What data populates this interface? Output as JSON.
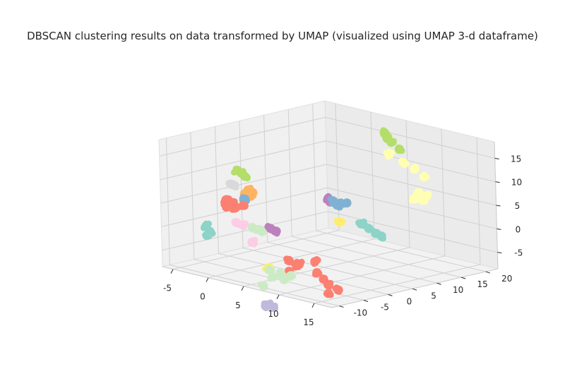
{
  "chart_data": {
    "type": "scatter",
    "projection": "3d",
    "title": "DBSCAN clustering results on data transformed by UMAP (visualized using UMAP 3-d dataframe)",
    "xlabel": "",
    "ylabel": "",
    "zlabel": "",
    "xlim": [
      -6.5,
      17.5
    ],
    "ylim": [
      -11.5,
      22.5
    ],
    "zlim": [
      -8.5,
      18.5
    ],
    "x_ticks": [
      -5,
      0,
      5,
      10,
      15
    ],
    "y_ticks": [
      -10,
      -5,
      0,
      5,
      10,
      15,
      20
    ],
    "z_ticks": [
      -5,
      0,
      5,
      10,
      15
    ],
    "grid": true,
    "legend": "none",
    "clusters": [
      {
        "color": "#b3de69",
        "points": [
          [
            -4.9,
            2.0,
            9.3
          ],
          [
            -4.2,
            1.8,
            9.0
          ],
          [
            -4.6,
            2.5,
            8.6
          ],
          [
            -4.0,
            2.2,
            8.3
          ]
        ]
      },
      {
        "color": "#d9d9d9",
        "points": [
          [
            -5.6,
            1.6,
            6.2
          ],
          [
            -5.2,
            1.8,
            6.0
          ]
        ]
      },
      {
        "color": "#fdb462",
        "points": [
          [
            -3.6,
            2.2,
            5.5
          ],
          [
            -3.2,
            2.6,
            5.0
          ],
          [
            -3.9,
            1.9,
            4.7
          ],
          [
            -3.4,
            2.4,
            4.2
          ]
        ]
      },
      {
        "color": "#80b1d3",
        "points": [
          [
            -4.2,
            2.4,
            3.3
          ]
        ]
      },
      {
        "color": "#fb8072",
        "points": [
          [
            -5.6,
            0.5,
            3.1
          ],
          [
            -4.6,
            0.5,
            2.9
          ],
          [
            -5.4,
            0.3,
            1.7
          ],
          [
            -4.3,
            0.6,
            1.9
          ],
          [
            -4.9,
            0.2,
            2.3
          ],
          [
            -3.4,
            1.0,
            2.6
          ]
        ]
      },
      {
        "color": "#8dd3c7",
        "points": [
          [
            -5.7,
            -3.5,
            -1.5
          ],
          [
            -5.6,
            -3.0,
            -2.7
          ],
          [
            -5.5,
            -3.7,
            -3.4
          ]
        ]
      },
      {
        "color": "#fccde5",
        "points": [
          [
            -3.5,
            -0.5,
            -0.7
          ],
          [
            -2.7,
            -0.3,
            -1.0
          ]
        ]
      },
      {
        "color": "#ccebc5",
        "points": [
          [
            -1.6,
            0.0,
            -1.2
          ],
          [
            -0.4,
            0.3,
            -1.7
          ],
          [
            -1.0,
            0.5,
            -1.5
          ]
        ]
      },
      {
        "color": "#fccde5",
        "points": [
          [
            -0.5,
            -1.7,
            -3.5
          ]
        ]
      },
      {
        "color": "#bc80bd",
        "points": [
          [
            0.1,
            1.3,
            -1.1
          ],
          [
            0.9,
            1.3,
            -1.4
          ]
        ]
      },
      {
        "color": "#ffed6f",
        "points": [
          [
            4.5,
            9.1,
            0.0
          ]
        ]
      },
      {
        "color": "#bc80bd",
        "points": [
          [
            1.3,
            11.5,
            3.3
          ],
          [
            1.7,
            11.3,
            2.7
          ]
        ]
      },
      {
        "color": "#80b1d3",
        "points": [
          [
            2.2,
            11.3,
            3.0
          ],
          [
            3.2,
            11.3,
            3.0
          ],
          [
            4.0,
            11.4,
            3.3
          ],
          [
            2.8,
            11.1,
            2.5
          ]
        ]
      },
      {
        "color": "#b3de69",
        "points": [
          [
            3.8,
            19.7,
            16.2
          ],
          [
            4.4,
            19.4,
            15.2
          ],
          [
            4.4,
            20.2,
            14.2
          ],
          [
            5.6,
            20.1,
            13.2
          ]
        ]
      },
      {
        "color": "#ffffb3",
        "points": [
          [
            4.5,
            19.6,
            11.8
          ],
          [
            6.3,
            19.9,
            10.6
          ],
          [
            7.8,
            19.9,
            9.8
          ],
          [
            9.6,
            19.2,
            9.0
          ]
        ]
      },
      {
        "color": "#ffffb3",
        "points": [
          [
            7.6,
            21.0,
            4.4
          ],
          [
            8.6,
            21.0,
            4.1
          ],
          [
            8.6,
            20.3,
            3.4
          ],
          [
            7.2,
            20.6,
            3.2
          ]
        ]
      },
      {
        "color": "#8dd3c7",
        "points": [
          [
            5.6,
            11.9,
            -0.7
          ],
          [
            6.7,
            11.9,
            -1.3
          ],
          [
            7.7,
            12.0,
            -2.0
          ],
          [
            8.1,
            12.4,
            -2.5
          ]
        ]
      },
      {
        "color": "#ffed6f",
        "points": [
          [
            0.5,
            0.0,
            -9.0
          ]
        ]
      },
      {
        "color": "#fb8072",
        "points": [
          [
            2.0,
            2.2,
            -7.5
          ],
          [
            3.7,
            1.8,
            -7.5
          ],
          [
            4.6,
            3.7,
            -7.1
          ],
          [
            3.0,
            2.3,
            -8.2
          ],
          [
            5.9,
            2.2,
            -8.6
          ],
          [
            6.6,
            2.5,
            -9.8
          ],
          [
            7.3,
            2.4,
            -10.7
          ],
          [
            8.9,
            2.2,
            -11.2
          ],
          [
            7.8,
            1.7,
            -12.2
          ],
          [
            2.6,
            1.3,
            -9.3
          ]
        ]
      },
      {
        "color": "#ccebc5",
        "points": [
          [
            1.2,
            -0.8,
            -9.0
          ],
          [
            2.5,
            -0.3,
            -9.5
          ],
          [
            2.6,
            0.2,
            -10.8
          ],
          [
            1.3,
            -0.2,
            -10.6
          ],
          [
            0.6,
            -1.2,
            -12.5
          ],
          [
            3.5,
            0.2,
            -9.7
          ]
        ]
      },
      {
        "color": "#bebada",
        "points": [
          [
            4.3,
            -5.8,
            -14.1
          ],
          [
            5.0,
            -5.6,
            -14.4
          ],
          [
            3.9,
            -5.6,
            -14.5
          ]
        ]
      }
    ]
  }
}
